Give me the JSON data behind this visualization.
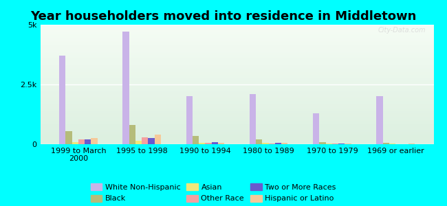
{
  "title": "Year householders moved into residence in Middletown",
  "categories": [
    "1999 to March\n2000",
    "1995 to 1998",
    "1990 to 1994",
    "1980 to 1989",
    "1970 to 1979",
    "1969 or earlier"
  ],
  "series": {
    "White Non-Hispanic": [
      3700,
      4700,
      2000,
      2100,
      1300,
      2000
    ],
    "Black": [
      550,
      800,
      350,
      200,
      100,
      50
    ],
    "Asian": [
      100,
      150,
      50,
      50,
      30,
      20
    ],
    "Other Race": [
      200,
      300,
      50,
      30,
      20,
      10
    ],
    "Two or More Races": [
      200,
      250,
      100,
      50,
      20,
      10
    ],
    "Hispanic or Latino": [
      250,
      400,
      50,
      50,
      30,
      20
    ]
  },
  "colors": {
    "White Non-Hispanic": "#c9b3e8",
    "Black": "#b5bc7a",
    "Asian": "#f0e87a",
    "Other Race": "#f4a0a0",
    "Two or More Races": "#6a5acd",
    "Hispanic or Latino": "#f5c99a"
  },
  "ylim": [
    0,
    5000
  ],
  "ytick_labels": [
    "0",
    "2.5k",
    "5k"
  ],
  "background_color": "#00ffff",
  "bar_width": 0.1,
  "title_fontsize": 13,
  "tick_fontsize": 8,
  "legend_fontsize": 8,
  "legend_row1": [
    "White Non-Hispanic",
    "Black",
    "Asian",
    "Other Race"
  ],
  "legend_row2": [
    "Two or More Races",
    "Hispanic or Latino"
  ]
}
